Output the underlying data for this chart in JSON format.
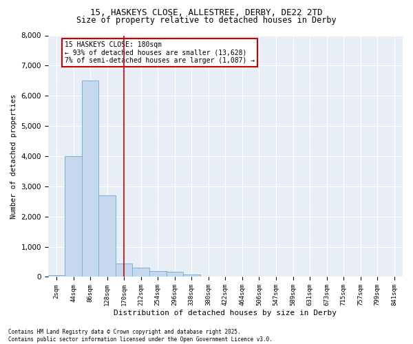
{
  "title_line1": "15, HASKEYS CLOSE, ALLESTREE, DERBY, DE22 2TD",
  "title_line2": "Size of property relative to detached houses in Derby",
  "xlabel": "Distribution of detached houses by size in Derby",
  "ylabel": "Number of detached properties",
  "categories": [
    "2sqm",
    "44sqm",
    "86sqm",
    "128sqm",
    "170sqm",
    "212sqm",
    "254sqm",
    "296sqm",
    "338sqm",
    "380sqm",
    "422sqm",
    "464sqm",
    "506sqm",
    "547sqm",
    "589sqm",
    "631sqm",
    "673sqm",
    "715sqm",
    "757sqm",
    "799sqm",
    "841sqm"
  ],
  "values": [
    50,
    4000,
    6500,
    2700,
    450,
    310,
    200,
    160,
    80,
    0,
    0,
    0,
    0,
    0,
    0,
    0,
    0,
    0,
    0,
    0,
    0
  ],
  "bar_color": "#c5d8ee",
  "bar_edge_color": "#7bafd4",
  "vline_x": 4,
  "vline_color": "#cc0000",
  "annotation_text": "15 HASKEYS CLOSE: 180sqm\n← 93% of detached houses are smaller (13,628)\n7% of semi-detached houses are larger (1,087) →",
  "annotation_box_color": "#cc0000",
  "ylim": [
    0,
    8000
  ],
  "yticks": [
    0,
    1000,
    2000,
    3000,
    4000,
    5000,
    6000,
    7000,
    8000
  ],
  "bg_color": "#e8eef5",
  "footnote": "Contains HM Land Registry data © Crown copyright and database right 2025.\nContains public sector information licensed under the Open Government Licence v3.0."
}
